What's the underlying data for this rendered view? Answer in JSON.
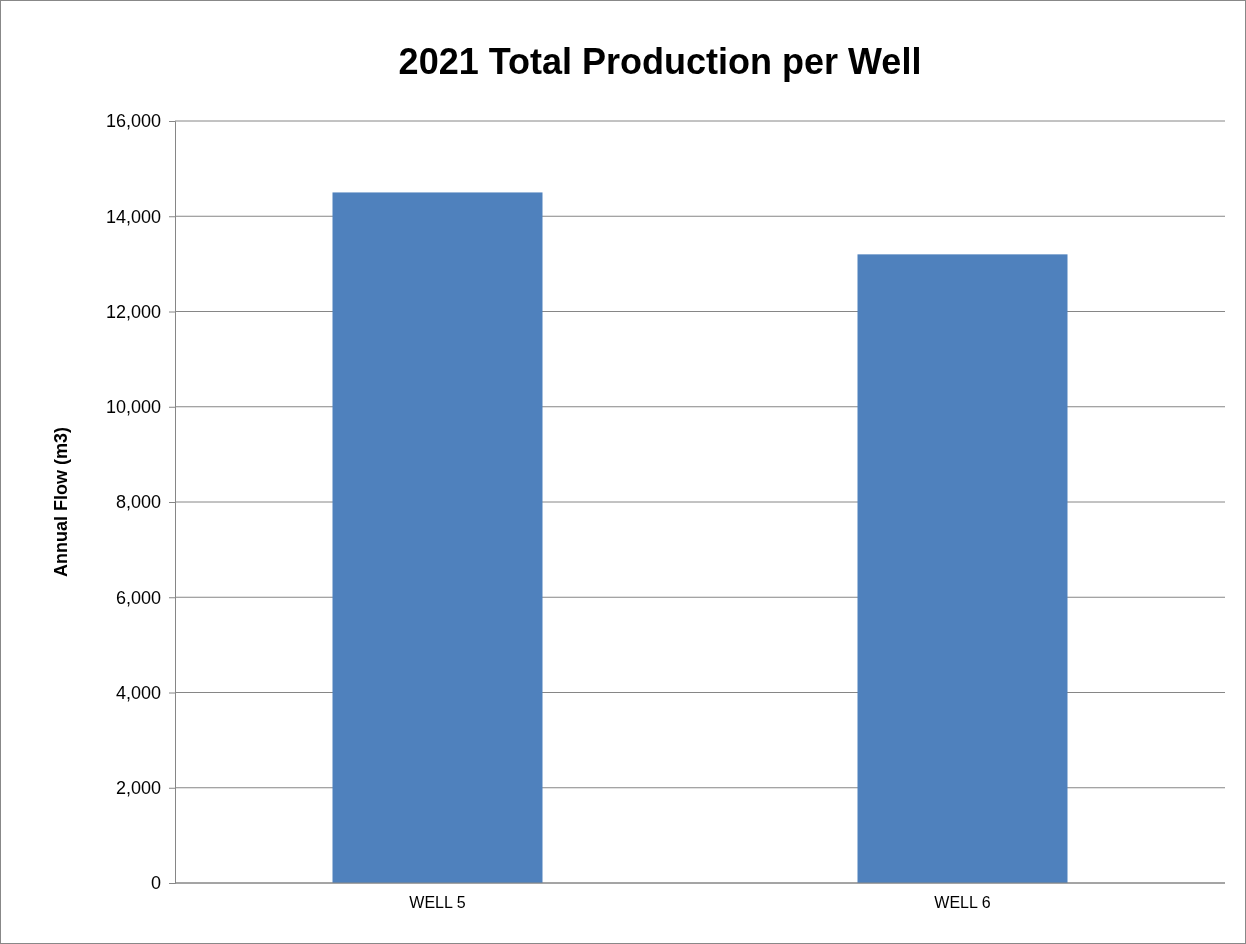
{
  "chart_data": {
    "type": "bar",
    "title": "2021 Total Production per Well",
    "ylabel": "Annual Flow (m3)",
    "categories": [
      "WELL 5",
      "WELL 6"
    ],
    "values": [
      14500,
      13200
    ],
    "color": "#4f81bd",
    "ylim": [
      0,
      16000
    ],
    "yticks": [
      {
        "value": 0,
        "label": "0"
      },
      {
        "value": 2000,
        "label": "2,000"
      },
      {
        "value": 4000,
        "label": "4,000"
      },
      {
        "value": 6000,
        "label": "6,000"
      },
      {
        "value": 8000,
        "label": "8,000"
      },
      {
        "value": 10000,
        "label": "10,000"
      },
      {
        "value": 12000,
        "label": "12,000"
      },
      {
        "value": 14000,
        "label": "14,000"
      },
      {
        "value": 16000,
        "label": "16,000"
      }
    ],
    "grid": "y"
  }
}
